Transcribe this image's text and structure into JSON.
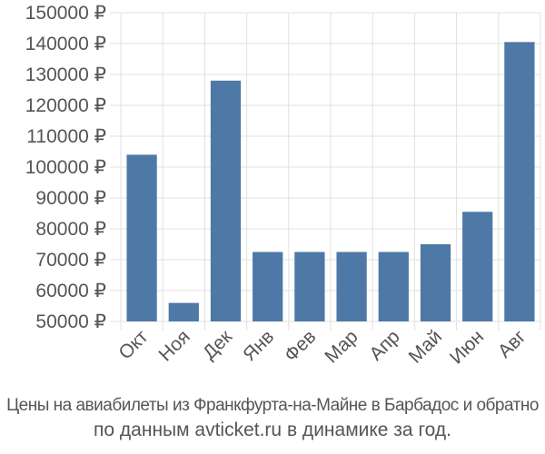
{
  "chart_data": {
    "type": "bar",
    "categories": [
      "Окт",
      "Ноя",
      "Дек",
      "Янв",
      "Фев",
      "Мар",
      "Апр",
      "Май",
      "Июн",
      "Авг"
    ],
    "values": [
      104000,
      56000,
      128000,
      72500,
      72500,
      72500,
      72500,
      75000,
      85500,
      140500
    ],
    "ylim": [
      50000,
      150000
    ],
    "yticks": [
      50000,
      60000,
      70000,
      80000,
      90000,
      100000,
      110000,
      120000,
      130000,
      140000,
      150000
    ],
    "currency": "₽",
    "bar_color": "#4e79a7",
    "grid": true
  },
  "caption": {
    "line1": "Цены на авиабилеты из Франкфурта-на-Майне в Барбадос и обратно",
    "line2": "по данным avticket.ru в динамике за год."
  }
}
